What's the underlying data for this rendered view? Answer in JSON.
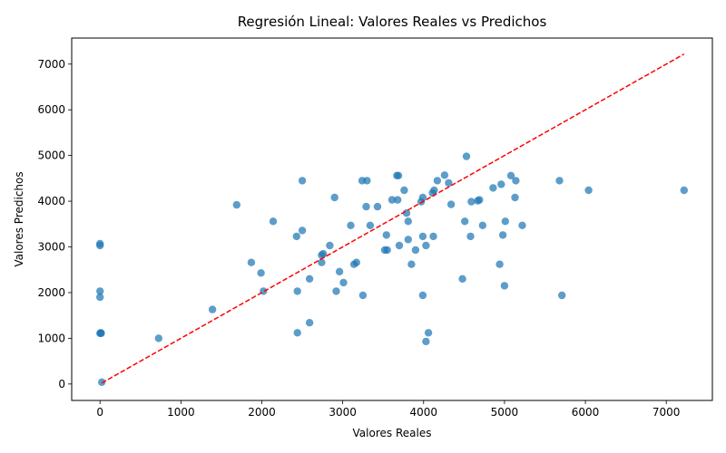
{
  "chart_data": {
    "type": "scatter",
    "title": "Regresión Lineal: Valores Reales vs Predichos",
    "xlabel": "Valores Reales",
    "ylabel": "Valores Predichos",
    "xlim": [
      -350,
      7570
    ],
    "ylim": [
      -360,
      7570
    ],
    "xticks": [
      0,
      1000,
      2000,
      3000,
      4000,
      5000,
      6000,
      7000
    ],
    "yticks": [
      0,
      1000,
      2000,
      3000,
      4000,
      5000,
      6000,
      7000
    ],
    "grid": false,
    "point_color": "#1f77b4",
    "line_color": "#ff0000",
    "reference_line": {
      "style": "dashed",
      "from": [
        22,
        22
      ],
      "to": [
        7220,
        7220
      ]
    },
    "points": [
      [
        22,
        40
      ],
      [
        725,
        1000
      ],
      [
        1390,
        1630
      ],
      [
        0,
        1110
      ],
      [
        15,
        1110
      ],
      [
        10,
        1120
      ],
      [
        0,
        1900
      ],
      [
        0,
        2030
      ],
      [
        0,
        3030
      ],
      [
        0,
        3070
      ],
      [
        1690,
        3920
      ],
      [
        1870,
        2660
      ],
      [
        1990,
        2430
      ],
      [
        2020,
        2030
      ],
      [
        2140,
        3560
      ],
      [
        2430,
        3230
      ],
      [
        2440,
        2030
      ],
      [
        2440,
        1120
      ],
      [
        2500,
        3360
      ],
      [
        2500,
        4450
      ],
      [
        2590,
        2300
      ],
      [
        2590,
        1340
      ],
      [
        2740,
        2660
      ],
      [
        2740,
        2820
      ],
      [
        2760,
        2850
      ],
      [
        2840,
        3030
      ],
      [
        2900,
        4080
      ],
      [
        2920,
        2030
      ],
      [
        2960,
        2460
      ],
      [
        3010,
        2220
      ],
      [
        3100,
        3470
      ],
      [
        3140,
        2620
      ],
      [
        3170,
        2660
      ],
      [
        3240,
        4450
      ],
      [
        3250,
        1940
      ],
      [
        3290,
        3880
      ],
      [
        3300,
        4450
      ],
      [
        3340,
        3470
      ],
      [
        3430,
        3880
      ],
      [
        3520,
        2930
      ],
      [
        3550,
        2930
      ],
      [
        3540,
        3260
      ],
      [
        3610,
        4030
      ],
      [
        3670,
        4560
      ],
      [
        3690,
        4560
      ],
      [
        3680,
        4030
      ],
      [
        3700,
        3030
      ],
      [
        3760,
        4240
      ],
      [
        3790,
        3740
      ],
      [
        3810,
        3560
      ],
      [
        3810,
        3160
      ],
      [
        3850,
        2620
      ],
      [
        3900,
        2930
      ],
      [
        3970,
        3990
      ],
      [
        3990,
        3230
      ],
      [
        3990,
        4080
      ],
      [
        3990,
        1940
      ],
      [
        4030,
        3030
      ],
      [
        4030,
        930
      ],
      [
        4060,
        1120
      ],
      [
        4110,
        4180
      ],
      [
        4120,
        3230
      ],
      [
        4130,
        4240
      ],
      [
        4170,
        4450
      ],
      [
        4260,
        4570
      ],
      [
        4310,
        4400
      ],
      [
        4340,
        3930
      ],
      [
        4480,
        2300
      ],
      [
        4510,
        3560
      ],
      [
        4530,
        4980
      ],
      [
        4580,
        3230
      ],
      [
        4590,
        3990
      ],
      [
        4670,
        4010
      ],
      [
        4690,
        4030
      ],
      [
        4730,
        3470
      ],
      [
        4860,
        4290
      ],
      [
        4940,
        2620
      ],
      [
        4960,
        4370
      ],
      [
        4980,
        3260
      ],
      [
        5000,
        2150
      ],
      [
        5010,
        3560
      ],
      [
        5080,
        4560
      ],
      [
        5130,
        4080
      ],
      [
        5140,
        4450
      ],
      [
        5220,
        3470
      ],
      [
        5680,
        4450
      ],
      [
        5710,
        1940
      ],
      [
        6040,
        4240
      ],
      [
        7220,
        4240
      ]
    ]
  }
}
